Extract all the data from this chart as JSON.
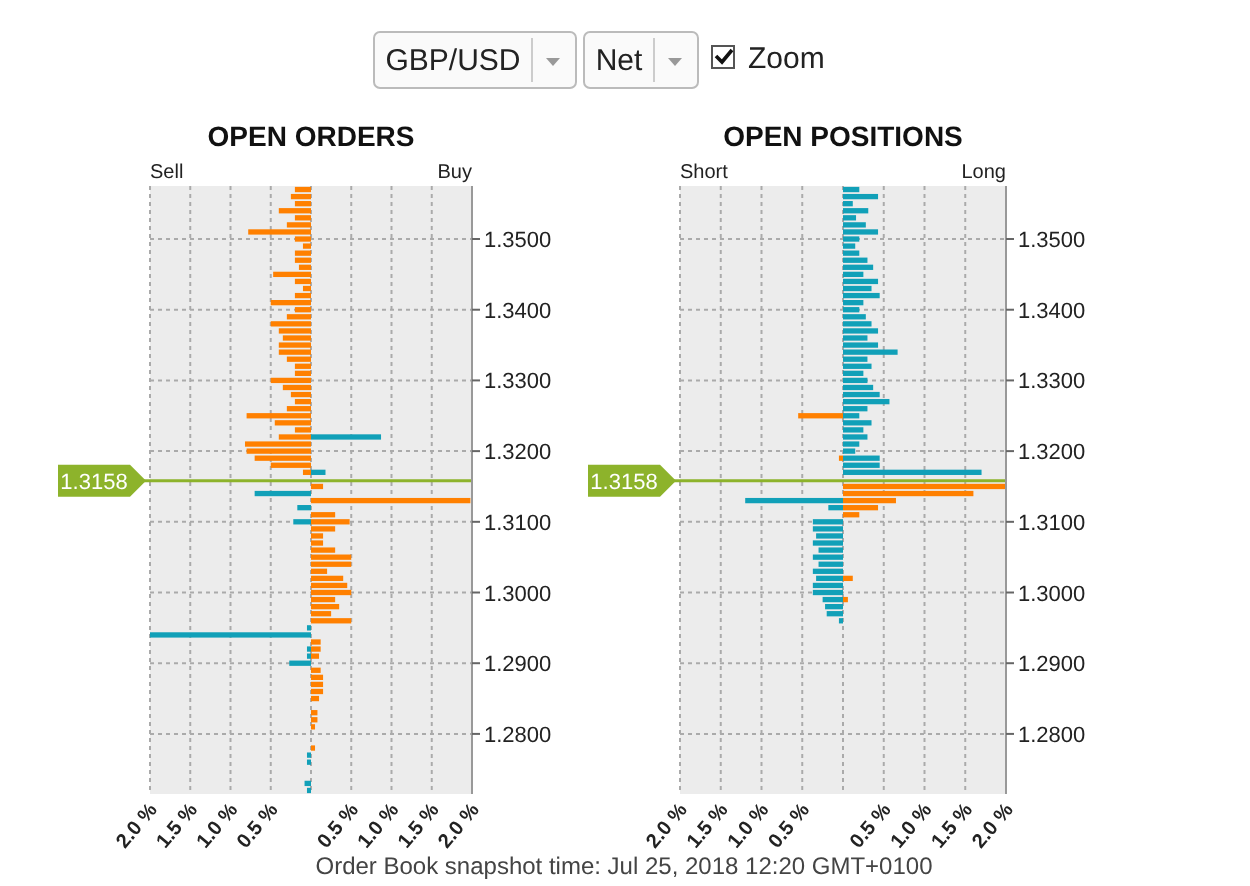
{
  "chart_data": [
    {
      "type": "other",
      "annotations": [
        "GBP/USD",
        "Net",
        "Zoom",
        "Order Book snapshot time: Jul 25, 2018 12:20 GMT+0100"
      ]
    },
    {
      "type": "bar",
      "orientation": "horizontal",
      "title": "OPEN ORDERS",
      "annotations": [
        "Sell",
        "Buy"
      ],
      "series": [
        {
          "color": "#ff8000",
          "x": [
            1.357,
            1.356,
            1.355,
            1.354,
            1.353,
            1.352,
            1.351,
            1.35,
            1.349,
            1.348,
            1.347,
            1.346,
            1.345,
            1.344,
            1.343,
            1.342,
            1.341,
            1.34,
            1.339,
            1.338,
            1.337,
            1.336,
            1.335,
            1.334,
            1.333,
            1.332,
            1.331,
            1.33,
            1.329,
            1.328,
            1.327,
            1.326,
            1.325,
            1.324,
            1.323,
            1.322,
            1.321,
            1.32,
            1.319,
            1.318,
            1.317,
            1.315,
            1.313,
            1.311,
            1.31,
            1.309,
            1.308,
            1.307,
            1.306,
            1.305,
            1.304,
            1.303,
            1.302,
            1.301,
            1.3,
            1.299,
            1.298,
            1.297,
            1.296,
            1.293,
            1.292,
            1.291,
            1.289,
            1.288,
            1.287,
            1.286,
            1.285,
            1.283,
            1.282,
            1.281,
            1.278
          ],
          "values": [
            -0.2,
            -0.25,
            -0.2,
            -0.4,
            -0.2,
            -0.3,
            -0.78,
            -0.2,
            -0.1,
            -0.2,
            -0.2,
            -0.15,
            -0.47,
            -0.2,
            -0.1,
            -0.2,
            -0.5,
            -0.2,
            -0.3,
            -0.5,
            -0.4,
            -0.35,
            -0.4,
            -0.4,
            -0.3,
            -0.2,
            -0.2,
            -0.5,
            -0.35,
            -0.25,
            -0.2,
            -0.3,
            -0.8,
            -0.45,
            -0.2,
            -0.4,
            -0.82,
            -0.8,
            -0.7,
            -0.5,
            -0.1,
            0.15,
            1.98,
            0.3,
            0.48,
            0.3,
            0.15,
            0.15,
            0.3,
            0.5,
            0.5,
            0.2,
            0.4,
            0.45,
            0.5,
            0.3,
            0.35,
            0.25,
            0.5,
            0.12,
            0.12,
            0.1,
            0.12,
            0.15,
            0.15,
            0.15,
            0.1,
            0.08,
            0.08,
            0.05,
            0.05
          ]
        },
        {
          "color": "#11a0b8",
          "x": [
            1.322,
            1.317,
            1.314,
            1.312,
            1.31,
            1.295,
            1.294,
            1.292,
            1.291,
            1.29,
            1.277,
            1.276,
            1.273,
            1.272
          ],
          "values": [
            0.87,
            0.18,
            -0.7,
            -0.17,
            -0.22,
            -0.05,
            -2.0,
            -0.05,
            -0.05,
            -0.27,
            -0.05,
            -0.05,
            -0.08,
            -0.05
          ]
        }
      ],
      "xlim": [
        -2,
        2
      ],
      "xticks": [
        {
          "value": -2,
          "label": "2.0 %"
        },
        {
          "value": -1.5,
          "label": "1.5 %"
        },
        {
          "value": -1,
          "label": "1.0 %"
        },
        {
          "value": -0.5,
          "label": "0.5 %"
        },
        {
          "value": 0,
          "label": null
        },
        {
          "value": 0.5,
          "label": "0.5 %"
        },
        {
          "value": 1,
          "label": "1.0 %"
        },
        {
          "value": 1.5,
          "label": "1.5 %"
        },
        {
          "value": 2,
          "label": "2.0 %"
        }
      ],
      "ylim": [
        1.2715,
        1.3575
      ],
      "yticks": [
        {
          "value": 1.28,
          "label": "1.2800"
        },
        {
          "value": 1.29,
          "label": "1.2900"
        },
        {
          "value": 1.3,
          "label": "1.3000"
        },
        {
          "value": 1.31,
          "label": "1.3100"
        },
        {
          "value": 1.32,
          "label": "1.3200"
        },
        {
          "value": 1.33,
          "label": "1.3300"
        },
        {
          "value": 1.34,
          "label": "1.3400"
        },
        {
          "value": 1.35,
          "label": "1.3500"
        }
      ],
      "grid": true,
      "ref_lines": [
        {
          "axis": "y",
          "value": 1.3158,
          "label": "1.3158",
          "color": "#8db32b"
        }
      ]
    },
    {
      "type": "bar",
      "orientation": "horizontal",
      "title": "OPEN POSITIONS",
      "annotations": [
        "Short",
        "Long"
      ],
      "series": [
        {
          "color": "#11a0b8",
          "x": [
            1.357,
            1.356,
            1.355,
            1.354,
            1.353,
            1.352,
            1.351,
            1.35,
            1.349,
            1.348,
            1.347,
            1.346,
            1.345,
            1.344,
            1.343,
            1.342,
            1.341,
            1.34,
            1.339,
            1.338,
            1.337,
            1.336,
            1.335,
            1.334,
            1.333,
            1.332,
            1.331,
            1.33,
            1.329,
            1.328,
            1.327,
            1.326,
            1.325,
            1.324,
            1.323,
            1.322,
            1.321,
            1.32,
            1.319,
            1.318,
            1.317,
            1.313,
            1.312,
            1.31,
            1.309,
            1.308,
            1.307,
            1.306,
            1.305,
            1.304,
            1.303,
            1.302,
            1.301,
            1.3,
            1.299,
            1.298,
            1.297,
            1.296
          ],
          "values": [
            0.2,
            0.43,
            0.12,
            0.31,
            0.16,
            0.28,
            0.43,
            0.2,
            0.15,
            0.2,
            0.3,
            0.37,
            0.25,
            0.43,
            0.35,
            0.45,
            0.25,
            0.2,
            0.28,
            0.35,
            0.43,
            0.3,
            0.43,
            0.67,
            0.3,
            0.35,
            0.25,
            0.3,
            0.37,
            0.45,
            0.57,
            0.3,
            0.2,
            0.35,
            0.25,
            0.3,
            0.2,
            0.15,
            0.45,
            0.45,
            1.7,
            -1.2,
            -0.18,
            -0.37,
            -0.37,
            -0.33,
            -0.37,
            -0.3,
            -0.37,
            -0.3,
            -0.37,
            -0.33,
            -0.37,
            -0.37,
            -0.25,
            -0.22,
            -0.2,
            -0.05
          ]
        },
        {
          "color": "#ff8000",
          "x": [
            1.325,
            1.319,
            1.315,
            1.314,
            1.313,
            1.312,
            1.311,
            1.302,
            1.299
          ],
          "values": [
            -0.55,
            -0.05,
            2.0,
            1.6,
            0.65,
            0.43,
            0.2,
            0.12,
            0.06
          ]
        }
      ],
      "xlim": [
        -2,
        2
      ],
      "xticks": [
        {
          "value": -2,
          "label": "2.0 %"
        },
        {
          "value": -1.5,
          "label": "1.5 %"
        },
        {
          "value": -1,
          "label": "1.0 %"
        },
        {
          "value": -0.5,
          "label": "0.5 %"
        },
        {
          "value": 0,
          "label": null
        },
        {
          "value": 0.5,
          "label": "0.5 %"
        },
        {
          "value": 1,
          "label": "1.0 %"
        },
        {
          "value": 1.5,
          "label": "1.5 %"
        },
        {
          "value": 2,
          "label": "2.0 %"
        }
      ],
      "ylim": [
        1.2715,
        1.3575
      ],
      "yticks": [
        {
          "value": 1.28,
          "label": "1.2800"
        },
        {
          "value": 1.29,
          "label": "1.2900"
        },
        {
          "value": 1.3,
          "label": "1.3000"
        },
        {
          "value": 1.31,
          "label": "1.3100"
        },
        {
          "value": 1.32,
          "label": "1.3200"
        },
        {
          "value": 1.33,
          "label": "1.3300"
        },
        {
          "value": 1.34,
          "label": "1.3400"
        },
        {
          "value": 1.35,
          "label": "1.3500"
        }
      ],
      "grid": true,
      "ref_lines": [
        {
          "axis": "y",
          "value": 1.3158,
          "label": "1.3158",
          "color": "#8db32b"
        }
      ]
    }
  ]
}
